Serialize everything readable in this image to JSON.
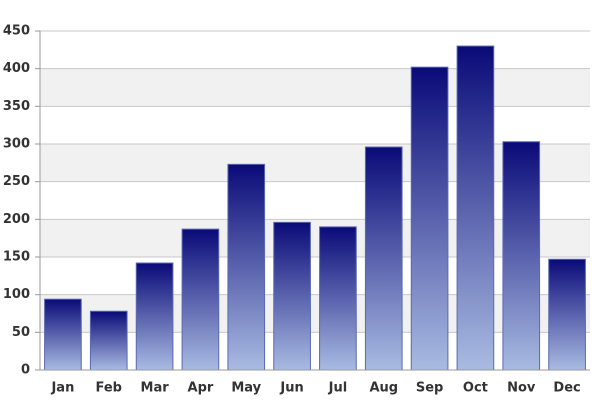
{
  "chart_data": {
    "type": "bar",
    "categories": [
      "Jan",
      "Feb",
      "Mar",
      "Apr",
      "May",
      "Jun",
      "Jul",
      "Aug",
      "Sep",
      "Oct",
      "Nov",
      "Dec"
    ],
    "values": [
      94,
      78,
      142,
      187,
      273,
      196,
      190,
      296,
      402,
      430,
      303,
      147
    ],
    "color": [
      "#0a0a78",
      "#a9bbe2"
    ],
    "ylim": [
      0,
      450
    ],
    "yticks": [
      0,
      50,
      100,
      150,
      200,
      250,
      300,
      350,
      400,
      450
    ],
    "grid": true,
    "band_color": "#f1f1f1"
  }
}
